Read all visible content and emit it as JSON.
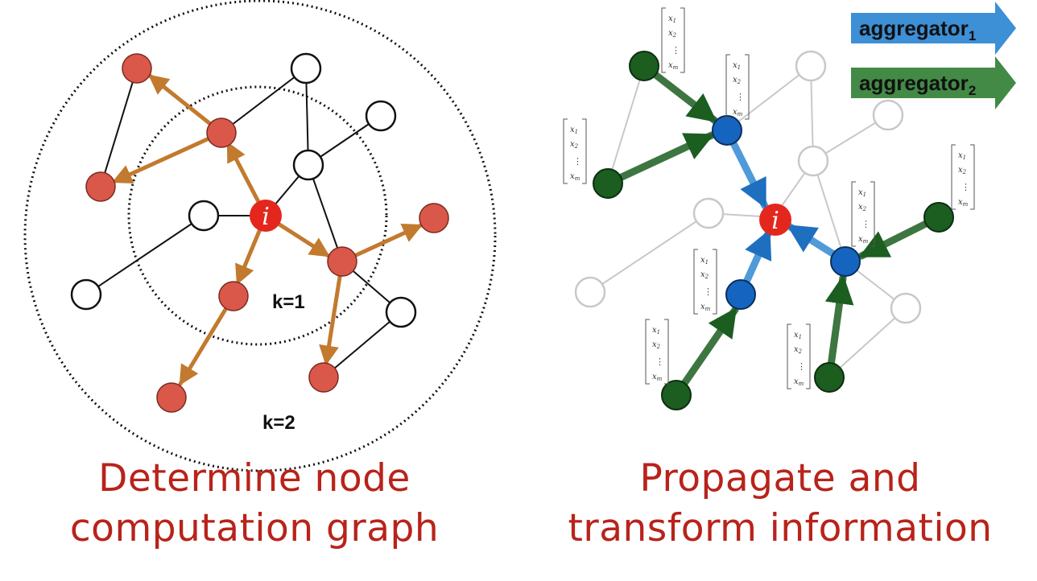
{
  "left_panel": {
    "center_node_label": "i",
    "ring_labels": {
      "inner": "k=1",
      "outer": "k=2"
    },
    "caption": {
      "line1": "Determine node",
      "line2": "computation graph"
    }
  },
  "right_panel": {
    "center_node_label": "i",
    "legend": [
      {
        "label": "aggregator",
        "subscript": "1",
        "color": "#3d8fd6"
      },
      {
        "label": "aggregator",
        "subscript": "2",
        "color": "#2e7d32"
      }
    ],
    "feature_vector": {
      "x1": "x",
      "s1": "1",
      "x2": "x",
      "s2": "2",
      "dots": "⋮",
      "xm": "x",
      "sm": "m"
    },
    "caption": {
      "line1": "Propagate and",
      "line2": "transform information"
    }
  },
  "colors": {
    "caption": "#b8231a",
    "hop_node": "#d9584a",
    "hop_edge": "#c27a2e",
    "center_node": "#e3271d",
    "agg1_node": "#1565c0",
    "agg2_node": "#1b5e20",
    "faded": "#c8c8c8"
  }
}
